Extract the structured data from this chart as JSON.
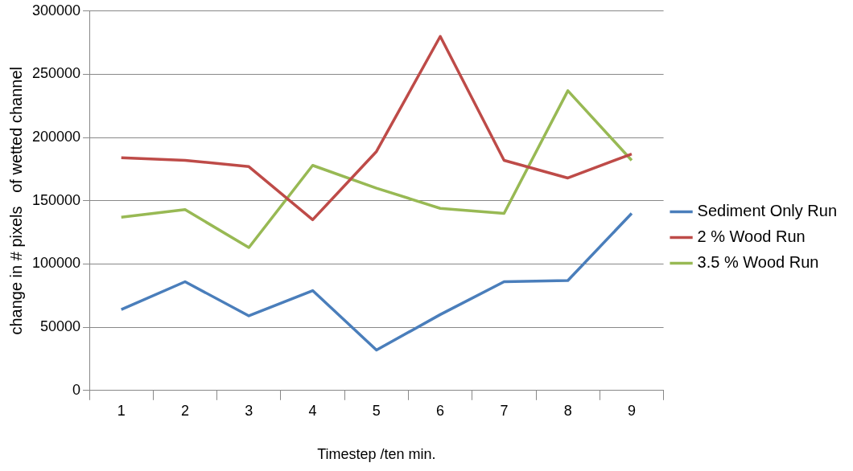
{
  "chart_data": {
    "type": "line",
    "xlabel": "Timestep /ten min.",
    "ylabel": "change in # pixels   of wetted channel",
    "categories": [
      "1",
      "2",
      "3",
      "4",
      "5",
      "6",
      "7",
      "8",
      "9"
    ],
    "series": [
      {
        "name": "Sediment Only Run",
        "color": "#4a7ebb",
        "values": [
          64000,
          86000,
          59000,
          79000,
          32000,
          60000,
          86000,
          87000,
          140000
        ]
      },
      {
        "name": "2 % Wood Run",
        "color": "#be4b48",
        "values": [
          184000,
          182000,
          177000,
          135000,
          189000,
          280000,
          182000,
          168000,
          187000
        ]
      },
      {
        "name": "3.5 % Wood Run",
        "color": "#98b954",
        "values": [
          137000,
          143000,
          113000,
          178000,
          160000,
          144000,
          140000,
          237000,
          182000
        ]
      }
    ],
    "ylim": [
      0,
      300000
    ],
    "yticks": [
      0,
      50000,
      100000,
      150000,
      200000,
      250000,
      300000
    ],
    "grid": "y",
    "legend": "right",
    "marker": "none",
    "line_style": "solid"
  }
}
